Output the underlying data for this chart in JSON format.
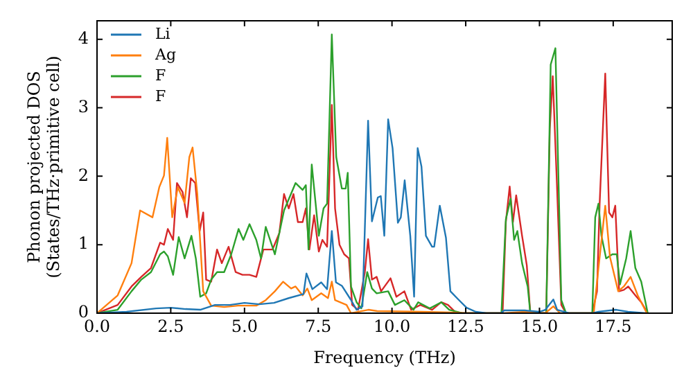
{
  "chart_data": {
    "type": "line",
    "xlabel": "Frequency (THz)",
    "ylabel": "Phonon projected DOS\n(States/THz·primitive cell)",
    "xlim": [
      0,
      19.5
    ],
    "ylim": [
      0,
      4.27
    ],
    "xticks": [
      {
        "value": 0,
        "label": "0.0"
      },
      2.5,
      {
        "value": 5,
        "label": "5.0"
      },
      7.5,
      {
        "value": 10,
        "label": "10.0"
      },
      12.5,
      {
        "value": 15,
        "label": "15.0"
      },
      17.5
    ],
    "yticks": [
      0,
      1,
      2,
      3,
      4
    ],
    "grid": false,
    "legend": "top left",
    "marker": "none",
    "line_style": "solid",
    "series": [
      {
        "name": "Li",
        "color": "#1f77b4",
        "x": [
          0,
          1,
          2,
          2.5,
          3,
          3.5,
          4,
          4.5,
          5,
          5.5,
          6,
          6.5,
          7,
          7.1,
          7.3,
          7.6,
          7.8,
          7.96,
          8.1,
          8.3,
          8.6,
          8.8,
          9,
          9.19,
          9.32,
          9.52,
          9.62,
          9.74,
          9.87,
          10.02,
          10.2,
          10.3,
          10.43,
          10.62,
          10.75,
          10.87,
          11,
          11.15,
          11.36,
          11.43,
          11.62,
          11.83,
          11.98,
          12.25,
          12.53,
          12.84,
          13.2,
          13.7,
          13.8,
          14.5,
          15,
          15.2,
          15.47,
          15.6,
          16,
          16.8,
          17,
          17.6,
          18,
          18.6
        ],
        "values": [
          0,
          0.02,
          0.07,
          0.08,
          0.06,
          0.05,
          0.12,
          0.12,
          0.15,
          0.13,
          0.15,
          0.22,
          0.28,
          0.58,
          0.35,
          0.45,
          0.35,
          1.2,
          0.45,
          0.4,
          0.2,
          0.05,
          0.1,
          2.81,
          1.34,
          1.69,
          1.71,
          1.13,
          2.83,
          2.41,
          1.32,
          1.4,
          1.94,
          1.13,
          0.24,
          2.41,
          2.14,
          1.13,
          0.97,
          0.97,
          1.57,
          1.1,
          0.32,
          0.2,
          0.08,
          0.02,
          0,
          0,
          0.04,
          0.04,
          0.02,
          0.05,
          0.2,
          0.05,
          0,
          0,
          0.02,
          0.05,
          0.02,
          0
        ]
      },
      {
        "name": "Ag",
        "color": "#ff7f0e",
        "x": [
          0,
          0.7,
          1.17,
          1.46,
          1.88,
          2.11,
          2.27,
          2.38,
          2.55,
          2.74,
          2.97,
          3.13,
          3.24,
          3.4,
          3.6,
          3.87,
          4.31,
          4.78,
          5.4,
          5.72,
          6.03,
          6.31,
          6.58,
          6.73,
          6.97,
          7.13,
          7.28,
          7.6,
          7.83,
          7.96,
          8.07,
          8.46,
          8.61,
          9.2,
          9.5,
          11,
          12,
          12.5,
          13.8,
          14.5,
          15.2,
          15.47,
          15.7,
          16.84,
          17,
          17.23,
          17.39,
          17.67,
          17.86,
          18.09,
          18.33,
          18.64
        ],
        "values": [
          0,
          0.26,
          0.73,
          1.5,
          1.4,
          1.84,
          2.01,
          2.56,
          1.4,
          1.84,
          1.61,
          2.28,
          2.42,
          1.74,
          0.32,
          0.11,
          0.09,
          0.11,
          0.11,
          0.19,
          0.32,
          0.46,
          0.36,
          0.39,
          0.26,
          0.36,
          0.19,
          0.29,
          0.22,
          0.46,
          0.19,
          0.12,
          0,
          0.05,
          0.03,
          0.02,
          0.01,
          0,
          0,
          0.02,
          0,
          0.1,
          0,
          0,
          0.66,
          1.57,
          0.82,
          0.32,
          0.39,
          0.53,
          0.26,
          0
        ]
      },
      {
        "name": "F",
        "color": "#2ca02c",
        "x": [
          0,
          0.7,
          1.17,
          1.5,
          1.83,
          2.14,
          2.27,
          2.4,
          2.58,
          2.77,
          2.97,
          3.2,
          3.35,
          3.5,
          3.7,
          3.87,
          4.07,
          4.31,
          4.55,
          4.8,
          4.96,
          5.17,
          5.4,
          5.56,
          5.72,
          6.03,
          6.34,
          6.73,
          6.97,
          7.08,
          7.17,
          7.28,
          7.52,
          7.68,
          7.8,
          7.96,
          8.11,
          8.3,
          8.43,
          8.5,
          8.61,
          8.8,
          8.96,
          9.16,
          9.32,
          9.48,
          9.87,
          10.1,
          10.42,
          10.73,
          10.89,
          11.28,
          11.67,
          11.94,
          12.38,
          13.71,
          13.86,
          14.02,
          14.14,
          14.25,
          14.41,
          14.6,
          14.69,
          15.23,
          15.38,
          15.54,
          15.74,
          15.9,
          16.79,
          16.89,
          17,
          17.1,
          17.26,
          17.47,
          17.62,
          17.73,
          17.94,
          18.09,
          18.25,
          18.45,
          18.67
        ],
        "values": [
          0,
          0.05,
          0.32,
          0.49,
          0.6,
          0.86,
          0.9,
          0.83,
          0.56,
          1.11,
          0.8,
          1.13,
          0.8,
          0.24,
          0.29,
          0.49,
          0.6,
          0.6,
          0.86,
          1.23,
          1.07,
          1.3,
          1.07,
          0.8,
          1.26,
          0.86,
          1.5,
          1.9,
          1.8,
          1.87,
          0.93,
          2.17,
          1.13,
          1.53,
          1.6,
          4.07,
          2.28,
          1.82,
          1.82,
          2.05,
          0.39,
          0.16,
          0.07,
          0.6,
          0.36,
          0.29,
          0.32,
          0.12,
          0.19,
          0.05,
          0.16,
          0.07,
          0.16,
          0.05,
          0,
          0,
          1.37,
          1.67,
          1.07,
          1.2,
          0.73,
          0.39,
          0,
          0,
          3.63,
          3.87,
          0.19,
          0,
          0,
          1.4,
          1.6,
          1.13,
          0.8,
          0.86,
          0.86,
          0.42,
          0.8,
          1.2,
          0.66,
          0.46,
          0
        ]
      },
      {
        "name": "F",
        "color": "#d62728",
        "x": [
          0,
          0.7,
          1.17,
          1.5,
          1.83,
          2.14,
          2.27,
          2.4,
          2.58,
          2.71,
          2.9,
          3.05,
          3.18,
          3.33,
          3.48,
          3.6,
          3.7,
          3.87,
          4.07,
          4.23,
          4.46,
          4.7,
          4.93,
          5.17,
          5.4,
          5.64,
          5.95,
          6.18,
          6.34,
          6.5,
          6.66,
          6.81,
          6.97,
          7.08,
          7.2,
          7.36,
          7.52,
          7.64,
          7.8,
          7.96,
          8.07,
          8.22,
          8.38,
          8.54,
          8.65,
          8.85,
          9.08,
          9.19,
          9.32,
          9.48,
          9.63,
          9.95,
          10.15,
          10.42,
          10.65,
          10.96,
          11.36,
          11.67,
          11.9,
          12.14,
          12.38,
          13.75,
          13.86,
          13.99,
          14.1,
          14.21,
          14.41,
          14.57,
          14.69,
          15.23,
          15.35,
          15.45,
          15.59,
          15.74,
          15.9,
          16.79,
          16.95,
          17.04,
          17.23,
          17.36,
          17.47,
          17.57,
          17.7,
          17.86,
          18.01,
          18.25,
          18.45,
          18.67
        ],
        "values": [
          0,
          0.12,
          0.39,
          0.53,
          0.66,
          1.03,
          1,
          1.23,
          1.07,
          1.9,
          1.77,
          1.4,
          1.97,
          1.9,
          1.2,
          1.47,
          0.49,
          0.46,
          0.93,
          0.73,
          0.97,
          0.6,
          0.56,
          0.56,
          0.53,
          0.93,
          0.93,
          1.17,
          1.74,
          1.53,
          1.74,
          1.33,
          1.33,
          1.53,
          0.93,
          1.43,
          0.9,
          1.07,
          0.97,
          3.04,
          1.53,
          1,
          0.86,
          0.8,
          0.12,
          0.05,
          0.6,
          1.08,
          0.49,
          0.53,
          0.32,
          0.51,
          0.24,
          0.32,
          0.05,
          0.12,
          0.05,
          0.16,
          0.12,
          0.02,
          0,
          0,
          1.33,
          1.85,
          1.33,
          1.72,
          1.13,
          0.7,
          0,
          0,
          2.69,
          3.46,
          1.9,
          0.12,
          0,
          0,
          0.32,
          1.6,
          3.5,
          1.47,
          1.4,
          1.57,
          0.32,
          0.34,
          0.39,
          0.26,
          0.16,
          0
        ]
      }
    ]
  }
}
